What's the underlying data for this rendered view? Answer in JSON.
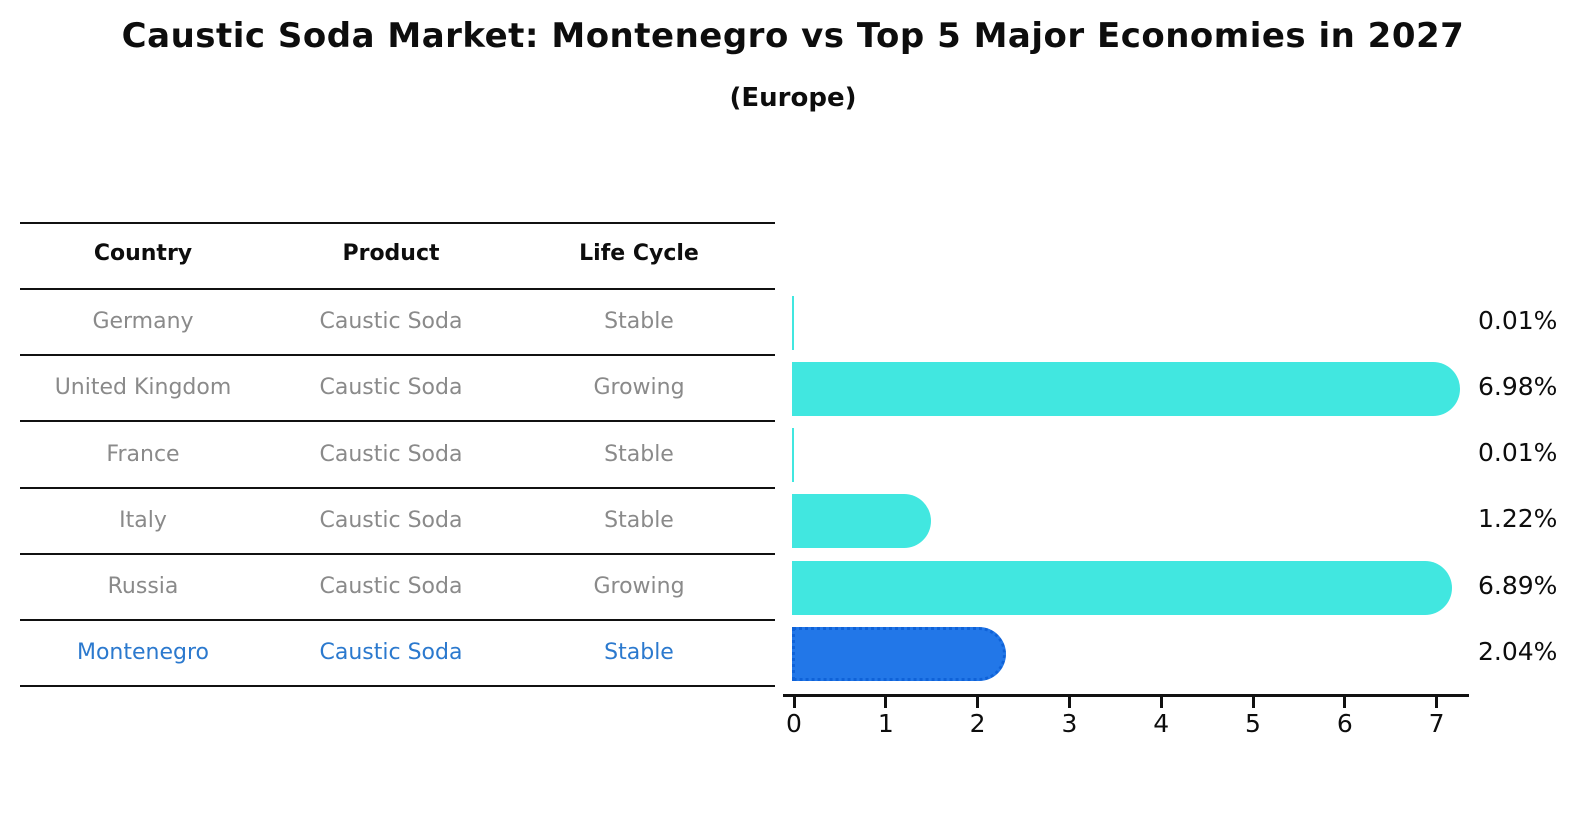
{
  "title": "Caustic Soda Market: Montenegro vs Top 5 Major Economies in 2027",
  "subtitle": "(Europe)",
  "table": {
    "headers": [
      "Country",
      "Product",
      "Life Cycle"
    ],
    "rows": [
      {
        "country": "Germany",
        "product": "Caustic Soda",
        "life_cycle": "Stable"
      },
      {
        "country": "United Kingdom",
        "product": "Caustic Soda",
        "life_cycle": "Growing"
      },
      {
        "country": "France",
        "product": "Caustic Soda",
        "life_cycle": "Stable"
      },
      {
        "country": "Italy",
        "product": "Caustic Soda",
        "life_cycle": "Stable"
      },
      {
        "country": "Russia",
        "product": "Caustic Soda",
        "life_cycle": "Growing"
      },
      {
        "country": "Montenegro",
        "product": "Caustic Soda",
        "life_cycle": "Stable"
      }
    ]
  },
  "chart_data": {
    "type": "bar",
    "orientation": "horizontal",
    "title": "Caustic Soda Market: Montenegro vs Top 5 Major Economies in 2027",
    "subtitle": "(Europe)",
    "categories": [
      "Germany",
      "United Kingdom",
      "France",
      "Italy",
      "Russia",
      "Montenegro"
    ],
    "values": [
      0.01,
      6.98,
      0.01,
      1.22,
      6.89,
      2.04
    ],
    "value_labels": [
      "0.01%",
      "6.98%",
      "0.01%",
      "1.22%",
      "6.89%",
      "2.04%"
    ],
    "xlim": [
      0,
      7.3
    ],
    "x_ticks": [
      0,
      1,
      2,
      3,
      4,
      5,
      6,
      7
    ],
    "grid": false,
    "legend": false,
    "highlight_index": 5,
    "colors": {
      "bar_default": "#41e7e0",
      "bar_highlight": "#2277e8",
      "highlight_border": "#0f62d8",
      "highlight_text": "#2b79ce",
      "table_text": "#8a8a8a",
      "axis": "#111111"
    }
  }
}
